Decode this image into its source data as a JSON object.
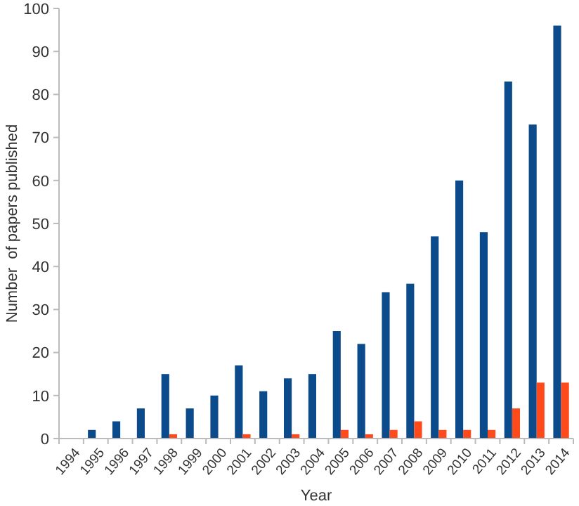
{
  "chart_data": {
    "type": "bar",
    "xlabel": "Year",
    "ylabel": "Number  of papers published",
    "categories": [
      "1994",
      "1995",
      "1996",
      "1997",
      "1998",
      "1999",
      "2000",
      "2001",
      "2002",
      "2003",
      "2004",
      "2005",
      "2006",
      "2007",
      "2008",
      "2009",
      "2010",
      "2011",
      "2012",
      "2013",
      "2014"
    ],
    "series": [
      {
        "color": "#0b4a8b",
        "values": [
          0,
          2,
          4,
          7,
          15,
          7,
          10,
          17,
          11,
          14,
          15,
          25,
          22,
          34,
          36,
          47,
          60,
          48,
          83,
          73,
          96
        ]
      },
      {
        "color": "#ff4a1c",
        "values": [
          0,
          0,
          0,
          0,
          1,
          0,
          0,
          1,
          0,
          1,
          0,
          2,
          1,
          2,
          4,
          2,
          2,
          2,
          7,
          13,
          13
        ]
      }
    ],
    "ylim": [
      0,
      100
    ],
    "yticks": [
      0,
      10,
      20,
      30,
      40,
      50,
      60,
      70,
      80,
      90,
      100
    ],
    "grid": false
  }
}
